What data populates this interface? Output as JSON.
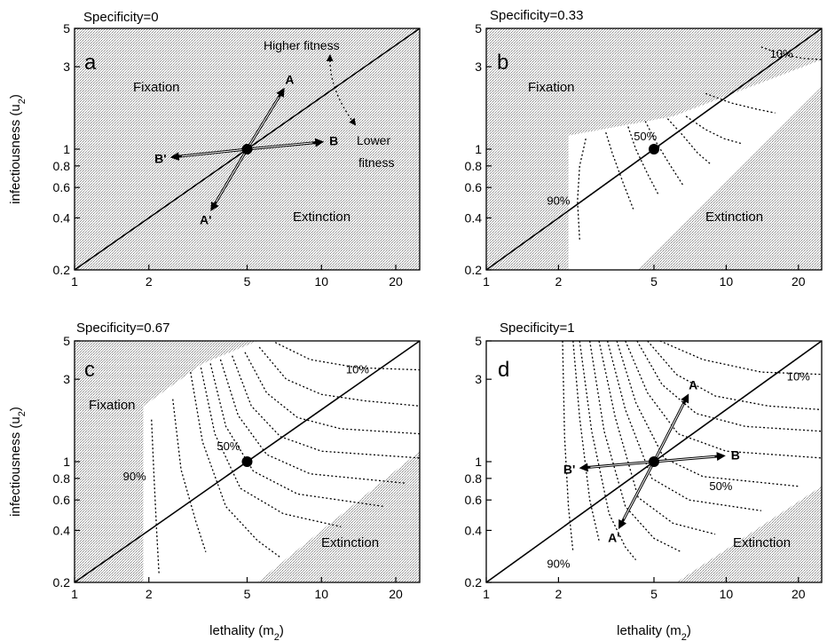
{
  "colors": {
    "shade": "#cfcfcf",
    "background": "#ffffff",
    "ink": "#000000"
  },
  "chart_data": [
    {
      "type": "line",
      "panel": "a",
      "title": "Specificity=0",
      "xlabel": "",
      "ylabel": "infectiousness (u_2)",
      "xscale": "log",
      "yscale": "log",
      "xlim": [
        1,
        25
      ],
      "ylim": [
        0.2,
        5
      ],
      "xticks": [
        1,
        2,
        5,
        10,
        20
      ],
      "yticks": [
        0.2,
        0.4,
        0.6,
        0.8,
        1,
        3,
        5
      ],
      "xtick_labels": [
        "1",
        "2",
        "5",
        "10",
        "20"
      ],
      "ytick_labels": [
        "0.2",
        "0.4",
        "0.6",
        "0.8",
        "1",
        "3",
        "5"
      ],
      "regions": [
        "Fixation",
        "Extinction"
      ],
      "boundary": [
        [
          1,
          0.2
        ],
        [
          25,
          5
        ]
      ],
      "point": [
        5,
        1
      ],
      "arrows": [
        {
          "label": "A",
          "to": [
            7,
            2.2
          ]
        },
        {
          "label": "B",
          "to": [
            10,
            1.1
          ]
        },
        {
          "label": "A'",
          "to": [
            3.6,
            0.45
          ]
        },
        {
          "label": "B'",
          "to": [
            2.5,
            0.9
          ]
        }
      ],
      "annotations": [
        "Higher fitness",
        "Lower fitness"
      ],
      "contours": []
    },
    {
      "type": "line",
      "panel": "b",
      "title": "Specificity=0.33",
      "xlabel": "",
      "ylabel": "",
      "xscale": "log",
      "yscale": "log",
      "xlim": [
        1,
        25
      ],
      "ylim": [
        0.2,
        5
      ],
      "xticks": [
        1,
        2,
        5,
        10,
        20
      ],
      "yticks": [
        0.2,
        0.4,
        0.6,
        0.8,
        1,
        3,
        5
      ],
      "xtick_labels": [
        "1",
        "2",
        "5",
        "10",
        "20"
      ],
      "ytick_labels": [
        "0.2",
        "0.4",
        "0.6",
        "0.8",
        "1",
        "3",
        "5"
      ],
      "regions": [
        "Fixation",
        "Extinction"
      ],
      "boundary": [
        [
          1,
          0.2
        ],
        [
          25,
          5
        ]
      ],
      "point": [
        5,
        1
      ],
      "arrows": [],
      "annotations": [],
      "contours": [
        {
          "label": "10%",
          "label_at": [
            17,
            3.55
          ],
          "points": [
            [
              14,
              3.9
            ],
            [
              17,
              3.55
            ],
            [
              21,
              3.35
            ],
            [
              25,
              3.3
            ]
          ]
        },
        {
          "label": "",
          "points": [
            [
              8.2,
              2.1
            ],
            [
              10.5,
              1.85
            ],
            [
              13.5,
              1.7
            ],
            [
              16,
              1.62
            ]
          ]
        },
        {
          "label": "",
          "points": [
            [
              6.8,
              1.55
            ],
            [
              8.2,
              1.3
            ],
            [
              9.8,
              1.15
            ],
            [
              11.5,
              1.08
            ]
          ]
        },
        {
          "label": "50%",
          "label_at": [
            4.6,
            1.18
          ],
          "points": [
            [
              5.7,
              1.5
            ],
            [
              6.6,
              1.2
            ],
            [
              7.6,
              0.95
            ],
            [
              8.6,
              0.82
            ]
          ]
        },
        {
          "label": "",
          "points": [
            [
              4.6,
              1.45
            ],
            [
              5.1,
              1.1
            ],
            [
              5.8,
              0.82
            ],
            [
              6.6,
              0.62
            ]
          ]
        },
        {
          "label": "",
          "points": [
            [
              3.9,
              1.35
            ],
            [
              4.2,
              1.0
            ],
            [
              4.7,
              0.72
            ],
            [
              5.2,
              0.55
            ]
          ]
        },
        {
          "label": "",
          "points": [
            [
              3.15,
              1.25
            ],
            [
              3.35,
              0.95
            ],
            [
              3.7,
              0.65
            ],
            [
              4.1,
              0.45
            ]
          ]
        },
        {
          "label": "90%",
          "label_at": [
            2.0,
            0.5
          ],
          "points": [
            [
              2.6,
              1.15
            ],
            [
              2.45,
              0.8
            ],
            [
              2.4,
              0.5
            ],
            [
              2.45,
              0.3
            ]
          ]
        }
      ]
    },
    {
      "type": "line",
      "panel": "c",
      "title": "Specificity=0.67",
      "xlabel": "lethality (m_2)",
      "ylabel": "infectiousness (u_2)",
      "xscale": "log",
      "yscale": "log",
      "xlim": [
        1,
        25
      ],
      "ylim": [
        0.2,
        5
      ],
      "xticks": [
        1,
        2,
        5,
        10,
        20
      ],
      "yticks": [
        0.2,
        0.4,
        0.6,
        0.8,
        1,
        3,
        5
      ],
      "xtick_labels": [
        "1",
        "2",
        "5",
        "10",
        "20"
      ],
      "ytick_labels": [
        "0.2",
        "0.4",
        "0.6",
        "0.8",
        "1",
        "3",
        "5"
      ],
      "regions": [
        "Fixation",
        "Extinction"
      ],
      "boundary": [
        [
          1,
          0.2
        ],
        [
          25,
          5
        ]
      ],
      "point": [
        5,
        1
      ],
      "arrows": [],
      "annotations": [],
      "contours": [
        {
          "label": "10%",
          "label_at": [
            14,
            3.4
          ],
          "points": [
            [
              6.5,
              4.9
            ],
            [
              9,
              3.9
            ],
            [
              14,
              3.5
            ],
            [
              25,
              3.4
            ]
          ]
        },
        {
          "label": "",
          "points": [
            [
              5.6,
              4.6
            ],
            [
              7.2,
              3.0
            ],
            [
              10,
              2.45
            ],
            [
              15,
              2.25
            ],
            [
              25,
              2.1
            ]
          ]
        },
        {
          "label": "",
          "points": [
            [
              4.9,
              4.3
            ],
            [
              6.0,
              2.5
            ],
            [
              8,
              1.8
            ],
            [
              12,
              1.55
            ],
            [
              25,
              1.45
            ]
          ]
        },
        {
          "label": "",
          "points": [
            [
              4.35,
              4.1
            ],
            [
              5.2,
              2.1
            ],
            [
              6.8,
              1.4
            ],
            [
              10,
              1.15
            ],
            [
              25,
              1.05
            ]
          ]
        },
        {
          "label": "50%",
          "label_at": [
            4.2,
            1.22
          ],
          "points": [
            [
              3.9,
              3.9
            ],
            [
              4.6,
              1.85
            ],
            [
              6.0,
              1.1
            ],
            [
              9,
              0.85
            ],
            [
              22,
              0.75
            ]
          ]
        },
        {
          "label": "",
          "points": [
            [
              3.55,
              3.7
            ],
            [
              4.1,
              1.6
            ],
            [
              5.3,
              0.88
            ],
            [
              8,
              0.65
            ],
            [
              18,
              0.55
            ]
          ]
        },
        {
          "label": "",
          "points": [
            [
              3.25,
              3.5
            ],
            [
              3.7,
              1.45
            ],
            [
              4.7,
              0.7
            ],
            [
              7,
              0.5
            ],
            [
              12,
              0.42
            ]
          ]
        },
        {
          "label": "",
          "points": [
            [
              2.95,
              3.3
            ],
            [
              3.3,
              1.3
            ],
            [
              4.1,
              0.55
            ],
            [
              5.5,
              0.35
            ],
            [
              6.8,
              0.28
            ]
          ]
        },
        {
          "label": "",
          "points": [
            [
              2.5,
              2.3
            ],
            [
              2.7,
              0.9
            ],
            [
              3.1,
              0.45
            ],
            [
              3.4,
              0.3
            ]
          ]
        },
        {
          "label": "90%",
          "label_at": [
            1.75,
            0.82
          ],
          "points": [
            [
              2.05,
              1.75
            ],
            [
              2.1,
              0.8
            ],
            [
              2.15,
              0.4
            ],
            [
              2.2,
              0.22
            ]
          ]
        }
      ]
    },
    {
      "type": "line",
      "panel": "d",
      "title": "Specificity=1",
      "xlabel": "lethality (m_2)",
      "ylabel": "",
      "xscale": "log",
      "yscale": "log",
      "xlim": [
        1,
        25
      ],
      "ylim": [
        0.2,
        5
      ],
      "xticks": [
        1,
        2,
        5,
        10,
        20
      ],
      "yticks": [
        0.2,
        0.4,
        0.6,
        0.8,
        1,
        3,
        5
      ],
      "xtick_labels": [
        "1",
        "2",
        "5",
        "10",
        "20"
      ],
      "ytick_labels": [
        "0.2",
        "0.4",
        "0.6",
        "0.8",
        "1",
        "3",
        "5"
      ],
      "regions": [
        "Extinction"
      ],
      "boundary": [
        [
          1,
          0.2
        ],
        [
          25,
          5
        ]
      ],
      "point": [
        5,
        1
      ],
      "arrows": [
        {
          "label": "A",
          "to": [
            6.9,
            2.4
          ]
        },
        {
          "label": "B",
          "to": [
            9.7,
            1.08
          ]
        },
        {
          "label": "A'",
          "to": [
            3.6,
            0.42
          ]
        },
        {
          "label": "B'",
          "to": [
            2.5,
            0.92
          ]
        }
      ],
      "annotations": [],
      "contours": [
        {
          "label": "10%",
          "label_at": [
            20,
            3.1
          ],
          "points": [
            [
              5.3,
              5.0
            ],
            [
              8,
              3.9
            ],
            [
              14,
              3.3
            ],
            [
              25,
              3.2
            ]
          ]
        },
        {
          "label": "",
          "points": [
            [
              4.7,
              5.0
            ],
            [
              6.2,
              3.2
            ],
            [
              9,
              2.4
            ],
            [
              15,
              2.1
            ],
            [
              25,
              2.0
            ]
          ]
        },
        {
          "label": "",
          "points": [
            [
              4.25,
              5.0
            ],
            [
              5.4,
              2.8
            ],
            [
              7.5,
              1.9
            ],
            [
              12,
              1.6
            ],
            [
              25,
              1.5
            ]
          ]
        },
        {
          "label": "",
          "points": [
            [
              3.8,
              5.0
            ],
            [
              4.7,
              2.5
            ],
            [
              6.3,
              1.45
            ],
            [
              10,
              1.15
            ],
            [
              25,
              1.05
            ]
          ]
        },
        {
          "label": "50%",
          "label_at": [
            9.5,
            0.72
          ],
          "points": [
            [
              3.5,
              5.0
            ],
            [
              4.2,
              2.2
            ],
            [
              5.5,
              1.05
            ],
            [
              8,
              0.82
            ],
            [
              20,
              0.72
            ]
          ]
        },
        {
          "label": "",
          "points": [
            [
              3.2,
              5.0
            ],
            [
              3.8,
              2.0
            ],
            [
              4.9,
              0.8
            ],
            [
              7,
              0.6
            ],
            [
              14,
              0.52
            ]
          ]
        },
        {
          "label": "",
          "points": [
            [
              2.95,
              5.0
            ],
            [
              3.45,
              1.8
            ],
            [
              4.3,
              0.62
            ],
            [
              6,
              0.44
            ],
            [
              9,
              0.38
            ]
          ]
        },
        {
          "label": "",
          "points": [
            [
              2.7,
              5.0
            ],
            [
              3.1,
              1.5
            ],
            [
              3.8,
              0.55
            ],
            [
              5,
              0.36
            ],
            [
              6.5,
              0.3
            ]
          ]
        },
        {
          "label": "",
          "points": [
            [
              2.45,
              5.0
            ],
            [
              2.75,
              1.5
            ],
            [
              3.25,
              0.5
            ],
            [
              3.8,
              0.32
            ],
            [
              4.2,
              0.27
            ]
          ]
        },
        {
          "label": "",
          "points": [
            [
              2.3,
              5.0
            ],
            [
              2.45,
              1.8
            ],
            [
              2.7,
              0.6
            ],
            [
              2.95,
              0.35
            ]
          ]
        },
        {
          "label": "90%",
          "label_at": [
            2.0,
            0.255
          ],
          "points": [
            [
              2.08,
              5.0
            ],
            [
              2.12,
              1.4
            ],
            [
              2.2,
              0.55
            ],
            [
              2.3,
              0.3
            ]
          ]
        }
      ]
    }
  ]
}
